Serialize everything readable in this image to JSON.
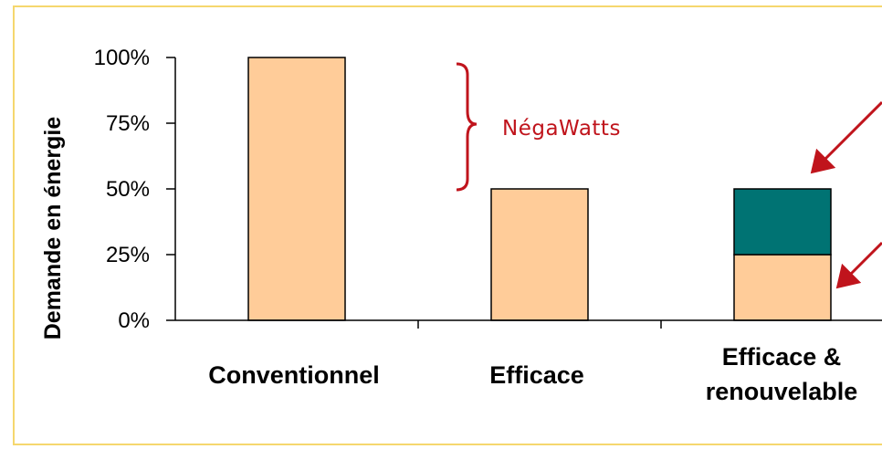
{
  "chart_data": {
    "type": "bar",
    "ylabel": "Demande en énergie",
    "ylim": [
      0,
      100
    ],
    "yticks": [
      "0%",
      "25%",
      "50%",
      "75%",
      "100%"
    ],
    "categories": [
      [
        "Conventionnel"
      ],
      [
        "Efficace"
      ],
      [
        "Efficace &",
        "renouvelable"
      ]
    ],
    "series": [
      {
        "values": [
          100,
          50,
          25
        ],
        "color": "#ffcc99"
      },
      {
        "values": [
          0,
          0,
          25
        ],
        "color": "#007373"
      }
    ],
    "annotation": {
      "text": "NégaWatts",
      "color": "#c0141c"
    }
  }
}
